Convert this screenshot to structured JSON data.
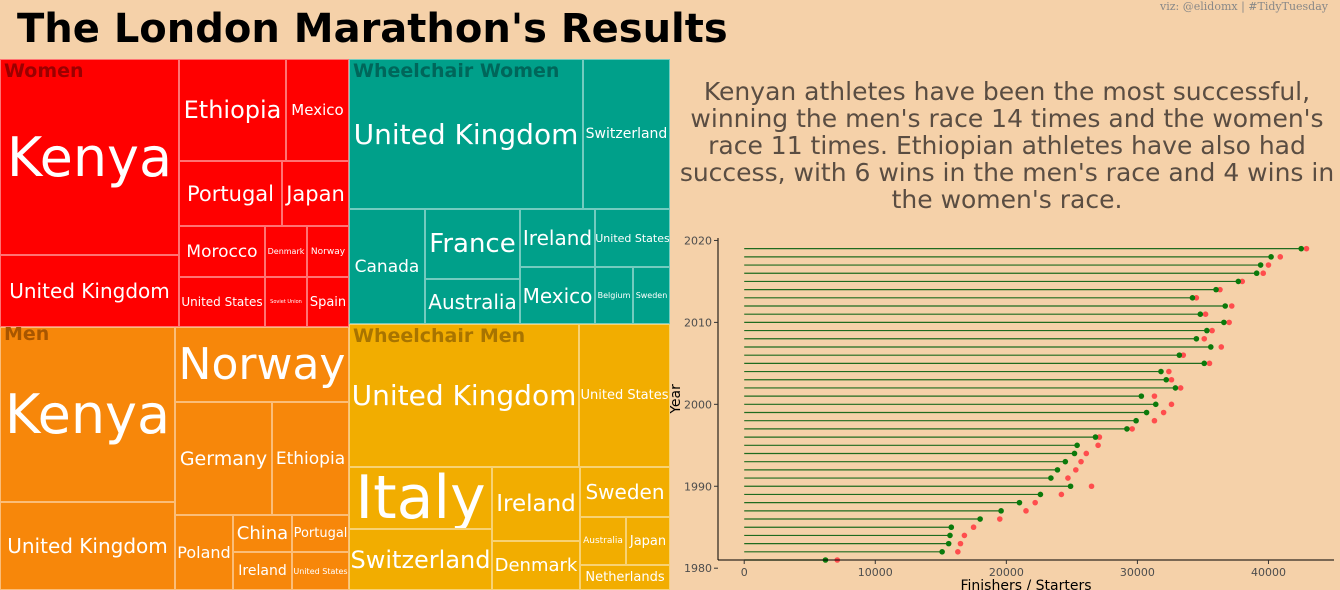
{
  "header": {
    "title": "The London Marathon's Results",
    "credit": "viz: @elidomx | #TidyTuesday"
  },
  "colors": {
    "women": "#ff0000",
    "men": "#f7870a",
    "wheelchair_women": "#00a08a",
    "wheelchair_men": "#f2ad00",
    "starters": "#ff4d4d",
    "finishers": "#0b7a0b",
    "segment": "#1f6b1f"
  },
  "treemap": {
    "women": {
      "label": "Women",
      "countries": [
        "Kenya",
        "Ethiopia",
        "Mexico",
        "Portugal",
        "Japan",
        "Morocco",
        "Denmark",
        "Norway",
        "United Kingdom",
        "United States",
        "Soviet Union",
        "Spain"
      ]
    },
    "wheelchair_women": {
      "label": "Wheelchair Women",
      "countries": [
        "United Kingdom",
        "Switzerland",
        "Canada",
        "France",
        "Ireland",
        "United States",
        "Australia",
        "Mexico",
        "Belgium",
        "Sweden"
      ]
    },
    "men": {
      "label": "Men",
      "countries": [
        "Kenya",
        "Norway",
        "Germany",
        "Ethiopia",
        "United Kingdom",
        "Poland",
        "China",
        "Portugal",
        "Ireland",
        "United States"
      ]
    },
    "wheelchair_men": {
      "label": "Wheelchair Men",
      "countries": [
        "United Kingdom",
        "United States",
        "Italy",
        "Ireland",
        "Sweden",
        "Australia",
        "Japan",
        "Switzerland",
        "Denmark",
        "Netherlands"
      ]
    }
  },
  "summary": "Kenyan athletes have been the most successful, winning the men's race 14 times and the women's race 11 times. Ethiopian athletes have also had success, with 6 wins in the men's race and 4 wins in the women's race.",
  "chart_data": {
    "type": "scatter",
    "subtype": "dumbbell",
    "xlabel": "Finishers / Starters",
    "ylabel": "Year",
    "xlim": [
      -2000,
      45000
    ],
    "ylim": [
      1981,
      2020.3
    ],
    "xticks": [
      0,
      10000,
      20000,
      30000,
      40000
    ],
    "yticks": [
      1980,
      1990,
      2000,
      2010,
      2020
    ],
    "grid": false,
    "series": [
      {
        "key": "finishers",
        "x": [
          6200,
          15100,
          15600,
          15700,
          15800,
          18000,
          19600,
          21000,
          22600,
          24900,
          23400,
          23900,
          24500,
          25200,
          25400,
          26800,
          29200,
          29900,
          30700,
          31400,
          30300,
          32900,
          32200,
          31800,
          35100,
          33200,
          35600,
          34500,
          35300,
          36600,
          34800,
          36700,
          34200,
          36000,
          37700,
          39100,
          39400,
          40200,
          42500
        ],
        "y": [
          1981,
          1982,
          1983,
          1984,
          1985,
          1986,
          1987,
          1988,
          1989,
          1990,
          1991,
          1992,
          1993,
          1994,
          1995,
          1996,
          1997,
          1998,
          1999,
          2000,
          2001,
          2002,
          2003,
          2004,
          2005,
          2006,
          2007,
          2008,
          2009,
          2010,
          2011,
          2012,
          2013,
          2014,
          2015,
          2016,
          2017,
          2018,
          2019
        ]
      },
      {
        "key": "starters",
        "x": [
          7100,
          16300,
          16500,
          16800,
          17500,
          19500,
          21500,
          22200,
          24200,
          26500,
          24700,
          25300,
          25700,
          26100,
          27000,
          27100,
          29600,
          31300,
          32000,
          32600,
          31300,
          33300,
          32600,
          32400,
          35500,
          33500,
          36400,
          35100,
          35700,
          37000,
          35200,
          37200,
          34500,
          36300,
          38000,
          39600,
          40000,
          40900,
          42900
        ],
        "y": [
          1981,
          1982,
          1983,
          1984,
          1985,
          1986,
          1987,
          1988,
          1989,
          1990,
          1991,
          1992,
          1993,
          1994,
          1995,
          1996,
          1997,
          1998,
          1999,
          2000,
          2001,
          2002,
          2003,
          2004,
          2005,
          2006,
          2007,
          2008,
          2009,
          2010,
          2011,
          2012,
          2013,
          2014,
          2015,
          2016,
          2017,
          2018,
          2019
        ]
      }
    ]
  }
}
